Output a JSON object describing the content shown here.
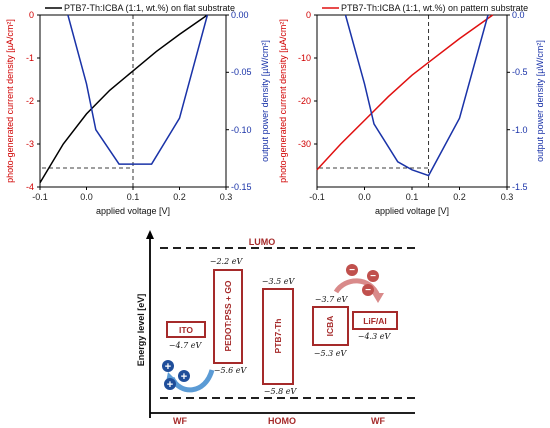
{
  "chart_data": [
    {
      "type": "line",
      "legend": "PTB7-Th:ICBA (1:1, wt.%) on flat substrate",
      "xlabel": "applied voltage [V]",
      "ylabel_left": "photo-generated current density [µA/cm²]",
      "ylabel_right": "output power density [µW/cm²]",
      "xlim": [
        -0.1,
        0.3
      ],
      "ylim_left": [
        -4,
        0
      ],
      "ylim_right": [
        -0.15,
        0
      ],
      "x_ticks": [
        "-0.1",
        "0.0",
        "0.1",
        "0.2",
        "0.3"
      ],
      "y_left_ticks": [
        "-4",
        "-3",
        "-2",
        "-1",
        "0"
      ],
      "y_right_ticks": [
        "-0.15",
        "-0.10",
        "-0.05",
        "0.00"
      ],
      "mpp_voltage": 0.1,
      "current_series": {
        "color": "#000000",
        "x": [
          -0.1,
          -0.05,
          0.0,
          0.05,
          0.1,
          0.15,
          0.2,
          0.26
        ],
        "y": [
          -3.9,
          -3.0,
          -2.3,
          -1.75,
          -1.3,
          -0.85,
          -0.45,
          0.0
        ]
      },
      "power_series": {
        "color": "#1a33a8",
        "x": [
          -0.04,
          0.0,
          0.02,
          0.07,
          0.1,
          0.14,
          0.2,
          0.26
        ],
        "y": [
          0.0,
          -0.06,
          -0.1,
          -0.13,
          -0.13,
          -0.13,
          -0.09,
          0.0
        ]
      }
    },
    {
      "type": "line",
      "legend": "PTB7-Th:ICBA (1:1, wt.%) on pattern substrate",
      "xlabel": "applied voltage [V]",
      "ylabel_left": "photo-generated current density [µA/cm²]",
      "ylabel_right": "output power density [µW/cm²]",
      "xlim": [
        -0.1,
        0.3
      ],
      "ylim_left": [
        -40,
        0
      ],
      "ylim_right": [
        -1.5,
        0
      ],
      "x_ticks": [
        "-0.1",
        "0.0",
        "0.1",
        "0.2",
        "0.3"
      ],
      "y_left_ticks": [
        "-30",
        "-20",
        "-10",
        "0"
      ],
      "y_right_ticks": [
        "-1.5",
        "-1.0",
        "-0.5",
        "0.0"
      ],
      "mpp_voltage": 0.135,
      "current_series": {
        "color": "#e01010",
        "x": [
          -0.1,
          -0.05,
          0.0,
          0.05,
          0.1,
          0.135,
          0.2,
          0.27
        ],
        "y": [
          -36,
          -30,
          -24.5,
          -19,
          -14,
          -11,
          -5.5,
          0.0
        ]
      },
      "power_series": {
        "color": "#1a33a8",
        "x": [
          -0.04,
          0.0,
          0.02,
          0.07,
          0.1,
          0.135,
          0.2,
          0.26
        ],
        "y": [
          0.0,
          -0.6,
          -0.95,
          -1.28,
          -1.35,
          -1.4,
          -0.9,
          0.0
        ]
      }
    },
    {
      "type": "diagram",
      "ylabel": "Energy level [eV]",
      "top_line_label": "LUMO",
      "bottom_labels": [
        "WF",
        "HOMO",
        "WF"
      ],
      "layers": [
        {
          "name": "ITO",
          "top": "−4.7 eV"
        },
        {
          "name": "PEDOT:PSS + GO",
          "top": "−2.2 eV",
          "bottom": "−5.6 eV"
        },
        {
          "name": "PTB7-Th",
          "top": "−3.5 eV",
          "bottom": "−5.8 eV"
        },
        {
          "name": "ICBA",
          "top": "−3.7 eV",
          "bottom": "−5.3 eV"
        },
        {
          "name": "LiF/Al",
          "bottom": "−4.3 eV"
        }
      ],
      "hole_symbol": "+",
      "electron_symbol": "−"
    }
  ]
}
